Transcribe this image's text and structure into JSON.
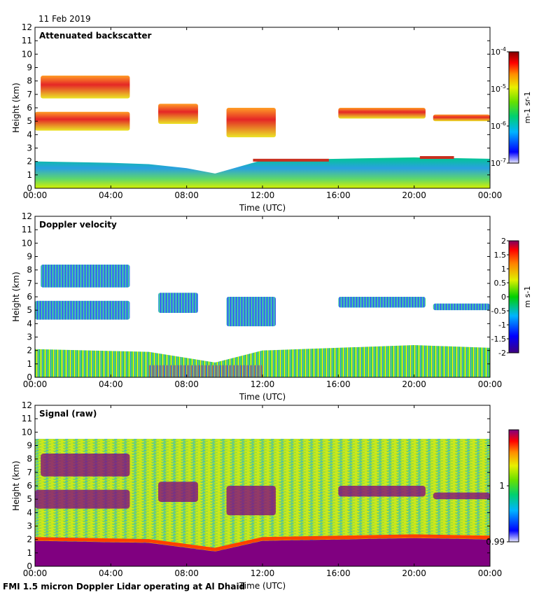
{
  "date": "11 Feb 2019",
  "footer": "FMI 1.5 micron Doppler Lidar operating at Al Dhaid",
  "chart_data": [
    {
      "type": "heatmap",
      "title": "Attenuated backscatter",
      "xlabel": "Time (UTC)",
      "ylabel": "Height (km)",
      "xlim": [
        0,
        24
      ],
      "ylim": [
        0,
        12
      ],
      "x_ticks": [
        "00:00",
        "04:00",
        "08:00",
        "12:00",
        "16:00",
        "20:00",
        "00:00"
      ],
      "y_ticks": [
        0,
        1,
        2,
        3,
        4,
        5,
        6,
        7,
        8,
        9,
        10,
        11,
        12
      ],
      "colorbar": {
        "label": "m-1 sr-1",
        "scale": "log",
        "range": [
          1e-07,
          0.0001
        ],
        "tick_labels": [
          "10-4",
          "10-5",
          "10-6",
          "10-7"
        ]
      },
      "boundary_layer_top_km": [
        [
          0,
          2.0
        ],
        [
          4,
          1.9
        ],
        [
          6,
          1.8
        ],
        [
          8,
          1.5
        ],
        [
          9.5,
          1.1
        ],
        [
          11,
          1.7
        ],
        [
          12,
          2.1
        ],
        [
          16,
          2.2
        ],
        [
          20,
          2.3
        ],
        [
          24,
          2.2
        ]
      ],
      "cloud_layers": [
        {
          "start_h": 0.3,
          "end_h": 5.0,
          "base_km": 6.7,
          "top_km": 8.4
        },
        {
          "start_h": 0.0,
          "end_h": 5.0,
          "base_km": 4.3,
          "top_km": 5.7
        },
        {
          "start_h": 6.5,
          "end_h": 8.6,
          "base_km": 4.8,
          "top_km": 6.3
        },
        {
          "start_h": 10.1,
          "end_h": 12.7,
          "base_km": 3.8,
          "top_km": 6.0
        },
        {
          "start_h": 16.0,
          "end_h": 20.6,
          "base_km": 5.2,
          "top_km": 6.0
        },
        {
          "start_h": 21.0,
          "end_h": 24.0,
          "base_km": 5.0,
          "top_km": 5.5
        }
      ]
    },
    {
      "type": "heatmap",
      "title": "Doppler velocity",
      "xlabel": "Time (UTC)",
      "ylabel": "Height (km)",
      "xlim": [
        0,
        24
      ],
      "ylim": [
        0,
        12
      ],
      "x_ticks": [
        "00:00",
        "04:00",
        "08:00",
        "12:00",
        "16:00",
        "20:00",
        "00:00"
      ],
      "y_ticks": [
        0,
        1,
        2,
        3,
        4,
        5,
        6,
        7,
        8,
        9,
        10,
        11,
        12
      ],
      "colorbar": {
        "label": "m s-1",
        "scale": "linear",
        "range": [
          -2,
          2
        ],
        "tick_labels": [
          "2",
          "1.5",
          "1",
          "0.5",
          "0",
          "-0.5",
          "-1",
          "-1.5",
          "-2"
        ]
      }
    },
    {
      "type": "heatmap",
      "title": "Signal (raw)",
      "xlabel": "Time (UTC)",
      "ylabel": "Height (km)",
      "xlim": [
        0,
        24
      ],
      "ylim": [
        0,
        12
      ],
      "x_ticks": [
        "00:00",
        "04:00",
        "08:00",
        "12:00",
        "16:00",
        "20:00",
        "00:00"
      ],
      "y_ticks": [
        0,
        1,
        2,
        3,
        4,
        5,
        6,
        7,
        8,
        9,
        10,
        11,
        12
      ],
      "noise_top_km": 9.5,
      "colorbar": {
        "label": "",
        "scale": "linear",
        "range": [
          0.99,
          1.01
        ],
        "tick_labels": [
          "1",
          "0.99"
        ]
      }
    }
  ]
}
